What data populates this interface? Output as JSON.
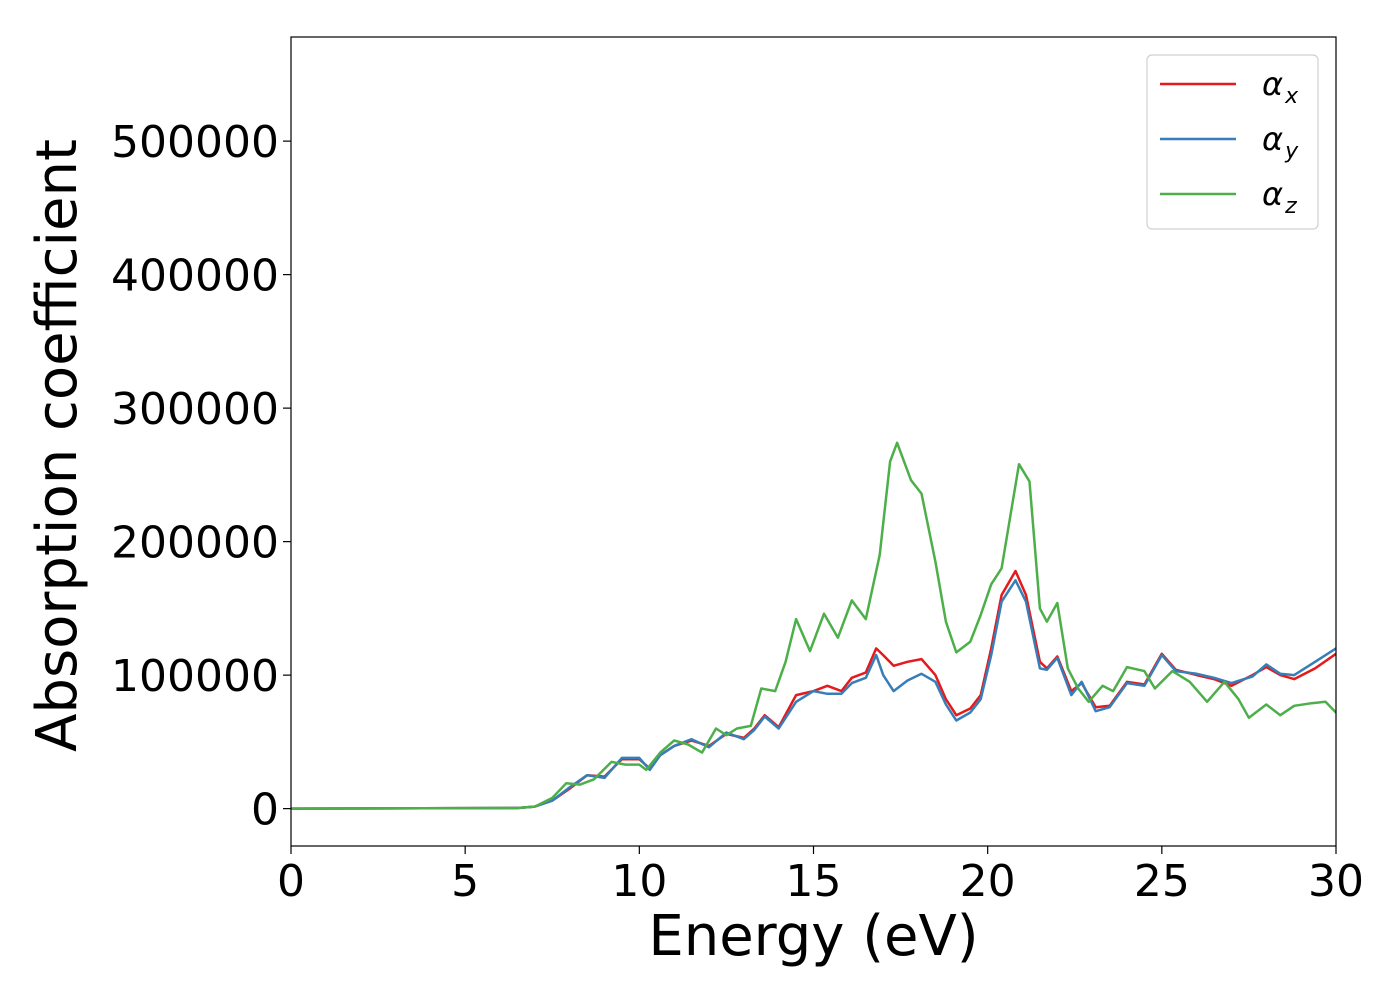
{
  "chart_data": {
    "type": "line",
    "title": "",
    "xlabel": "Energy (eV)",
    "ylabel": "Absorption coefficient",
    "xlim": [
      0,
      30
    ],
    "ylim": [
      -28000,
      578000
    ],
    "xticks": [
      0,
      5,
      10,
      15,
      20,
      25,
      30
    ],
    "yticks": [
      0,
      100000,
      200000,
      300000,
      400000,
      500000
    ],
    "grid": false,
    "legend_position": "top-right",
    "series": [
      {
        "name": "αx",
        "label_main": "α",
        "label_sub": "x",
        "color": "#e41a1c",
        "points": [
          [
            0,
            0
          ],
          [
            6.5,
            500
          ],
          [
            7.0,
            1500
          ],
          [
            7.5,
            6000
          ],
          [
            8.0,
            15000
          ],
          [
            8.5,
            25000
          ],
          [
            9.0,
            24000
          ],
          [
            9.5,
            37000
          ],
          [
            10.0,
            37000
          ],
          [
            10.3,
            30000
          ],
          [
            10.6,
            40000
          ],
          [
            11.0,
            47000
          ],
          [
            11.5,
            51000
          ],
          [
            12.0,
            47000
          ],
          [
            12.5,
            56000
          ],
          [
            13.0,
            53000
          ],
          [
            13.3,
            60000
          ],
          [
            13.6,
            70000
          ],
          [
            14.0,
            61000
          ],
          [
            14.5,
            85000
          ],
          [
            15.0,
            88000
          ],
          [
            15.4,
            92000
          ],
          [
            15.8,
            88000
          ],
          [
            16.1,
            98000
          ],
          [
            16.5,
            102000
          ],
          [
            16.8,
            120000
          ],
          [
            17.0,
            115000
          ],
          [
            17.3,
            107000
          ],
          [
            17.7,
            110000
          ],
          [
            18.1,
            112000
          ],
          [
            18.5,
            100000
          ],
          [
            18.8,
            82000
          ],
          [
            19.1,
            70000
          ],
          [
            19.5,
            75000
          ],
          [
            19.8,
            85000
          ],
          [
            20.1,
            120000
          ],
          [
            20.4,
            160000
          ],
          [
            20.8,
            178000
          ],
          [
            21.1,
            160000
          ],
          [
            21.5,
            110000
          ],
          [
            21.7,
            105000
          ],
          [
            22.0,
            114000
          ],
          [
            22.4,
            88000
          ],
          [
            22.7,
            94000
          ],
          [
            23.1,
            76000
          ],
          [
            23.5,
            77000
          ],
          [
            24.0,
            95000
          ],
          [
            24.5,
            93000
          ],
          [
            25.0,
            116000
          ],
          [
            25.4,
            104000
          ],
          [
            26.0,
            100000
          ],
          [
            26.5,
            97000
          ],
          [
            27.0,
            92000
          ],
          [
            27.6,
            100000
          ],
          [
            28.0,
            106000
          ],
          [
            28.4,
            100000
          ],
          [
            28.8,
            97000
          ],
          [
            29.4,
            105000
          ],
          [
            30.0,
            116000
          ]
        ]
      },
      {
        "name": "αy",
        "label_main": "α",
        "label_sub": "y",
        "color": "#377eb8",
        "points": [
          [
            0,
            0
          ],
          [
            6.5,
            500
          ],
          [
            7.0,
            1500
          ],
          [
            7.5,
            6000
          ],
          [
            8.0,
            16000
          ],
          [
            8.5,
            25000
          ],
          [
            9.0,
            23000
          ],
          [
            9.5,
            38000
          ],
          [
            10.0,
            38000
          ],
          [
            10.3,
            29000
          ],
          [
            10.6,
            40000
          ],
          [
            11.0,
            47000
          ],
          [
            11.5,
            52000
          ],
          [
            12.0,
            46000
          ],
          [
            12.5,
            57000
          ],
          [
            13.0,
            52000
          ],
          [
            13.3,
            59000
          ],
          [
            13.6,
            69000
          ],
          [
            14.0,
            60000
          ],
          [
            14.5,
            80000
          ],
          [
            15.0,
            88000
          ],
          [
            15.4,
            86000
          ],
          [
            15.8,
            86000
          ],
          [
            16.1,
            94000
          ],
          [
            16.5,
            98000
          ],
          [
            16.8,
            115000
          ],
          [
            17.0,
            100000
          ],
          [
            17.3,
            88000
          ],
          [
            17.7,
            96000
          ],
          [
            18.1,
            101000
          ],
          [
            18.5,
            95000
          ],
          [
            18.8,
            78000
          ],
          [
            19.1,
            66000
          ],
          [
            19.5,
            72000
          ],
          [
            19.8,
            82000
          ],
          [
            20.1,
            115000
          ],
          [
            20.4,
            155000
          ],
          [
            20.8,
            171000
          ],
          [
            21.1,
            155000
          ],
          [
            21.5,
            105000
          ],
          [
            21.7,
            104000
          ],
          [
            22.0,
            113000
          ],
          [
            22.4,
            85000
          ],
          [
            22.7,
            95000
          ],
          [
            23.1,
            73000
          ],
          [
            23.5,
            76000
          ],
          [
            24.0,
            94000
          ],
          [
            24.5,
            92000
          ],
          [
            25.0,
            115000
          ],
          [
            25.4,
            103000
          ],
          [
            26.0,
            101000
          ],
          [
            26.5,
            98000
          ],
          [
            27.0,
            94000
          ],
          [
            27.6,
            99000
          ],
          [
            28.0,
            108000
          ],
          [
            28.4,
            101000
          ],
          [
            28.8,
            100000
          ],
          [
            29.4,
            110000
          ],
          [
            30.0,
            120000
          ]
        ]
      },
      {
        "name": "αz",
        "label_main": "α",
        "label_sub": "z",
        "color": "#4daf4a",
        "points": [
          [
            0,
            0
          ],
          [
            6.5,
            500
          ],
          [
            7.0,
            1500
          ],
          [
            7.5,
            8000
          ],
          [
            7.9,
            19000
          ],
          [
            8.3,
            18000
          ],
          [
            8.7,
            22000
          ],
          [
            9.2,
            35000
          ],
          [
            9.6,
            33000
          ],
          [
            10.0,
            33000
          ],
          [
            10.2,
            29000
          ],
          [
            10.6,
            42000
          ],
          [
            11.0,
            51000
          ],
          [
            11.4,
            48000
          ],
          [
            11.8,
            42000
          ],
          [
            12.2,
            60000
          ],
          [
            12.5,
            55000
          ],
          [
            12.8,
            60000
          ],
          [
            13.2,
            62000
          ],
          [
            13.5,
            90000
          ],
          [
            13.9,
            88000
          ],
          [
            14.2,
            110000
          ],
          [
            14.5,
            142000
          ],
          [
            14.9,
            118000
          ],
          [
            15.3,
            146000
          ],
          [
            15.7,
            128000
          ],
          [
            16.1,
            156000
          ],
          [
            16.5,
            142000
          ],
          [
            16.9,
            190000
          ],
          [
            17.2,
            260000
          ],
          [
            17.4,
            274000
          ],
          [
            17.8,
            246000
          ],
          [
            18.1,
            236000
          ],
          [
            18.5,
            185000
          ],
          [
            18.8,
            140000
          ],
          [
            19.1,
            117000
          ],
          [
            19.5,
            125000
          ],
          [
            19.8,
            145000
          ],
          [
            20.1,
            168000
          ],
          [
            20.4,
            180000
          ],
          [
            20.9,
            258000
          ],
          [
            21.2,
            245000
          ],
          [
            21.5,
            150000
          ],
          [
            21.7,
            140000
          ],
          [
            22.0,
            154000
          ],
          [
            22.3,
            105000
          ],
          [
            22.6,
            90000
          ],
          [
            22.9,
            80000
          ],
          [
            23.3,
            92000
          ],
          [
            23.6,
            88000
          ],
          [
            24.0,
            106000
          ],
          [
            24.5,
            103000
          ],
          [
            24.8,
            90000
          ],
          [
            25.3,
            103000
          ],
          [
            25.8,
            95000
          ],
          [
            26.3,
            80000
          ],
          [
            26.8,
            95000
          ],
          [
            27.2,
            82000
          ],
          [
            27.5,
            68000
          ],
          [
            28.0,
            78000
          ],
          [
            28.4,
            70000
          ],
          [
            28.8,
            77000
          ],
          [
            29.3,
            79000
          ],
          [
            29.7,
            80000
          ],
          [
            30.0,
            72000
          ]
        ]
      }
    ]
  }
}
